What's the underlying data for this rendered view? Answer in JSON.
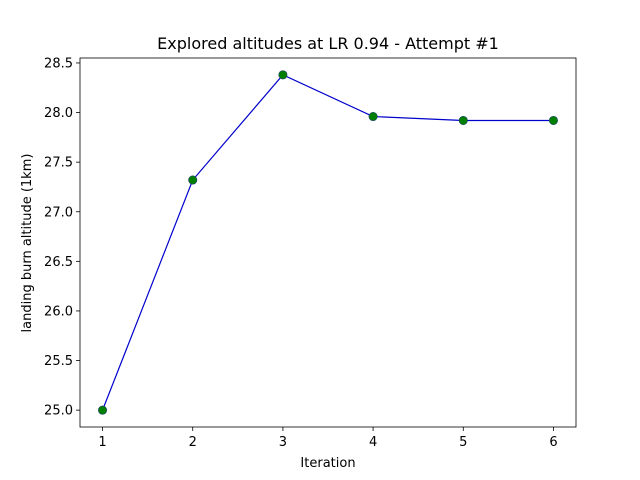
{
  "chart_data": {
    "type": "line",
    "title": "Explored altitudes at LR 0.94 - Attempt #1",
    "xlabel": "Iteration",
    "ylabel": "landing burn altitude (1km)",
    "x": [
      1,
      2,
      3,
      4,
      5,
      6
    ],
    "series": [
      {
        "values": [
          25.0,
          27.32,
          28.38,
          27.96,
          27.92,
          27.92
        ]
      }
    ],
    "xlim": [
      0.75,
      6.25
    ],
    "ylim": [
      24.83,
      28.55
    ],
    "xticks": [
      1,
      2,
      3,
      4,
      5,
      6
    ],
    "xtick_labels": [
      "1",
      "2",
      "3",
      "4",
      "5",
      "6"
    ],
    "yticks": [
      25.0,
      25.5,
      26.0,
      26.5,
      27.0,
      27.5,
      28.0,
      28.5
    ],
    "ytick_labels": [
      "25.0",
      "25.5",
      "26.0",
      "26.5",
      "27.0",
      "27.5",
      "28.0",
      "28.5"
    ],
    "grid": false,
    "colors": {
      "line": "#0000cc",
      "marker": "#007f00"
    }
  }
}
